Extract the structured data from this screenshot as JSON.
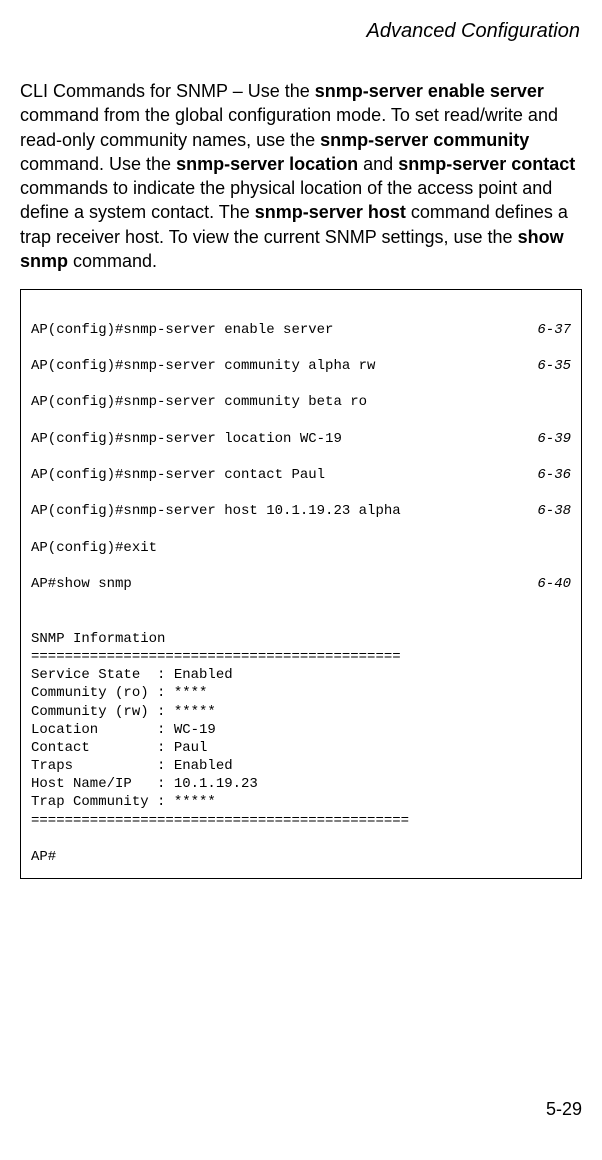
{
  "header": {
    "title": "Advanced Configuration"
  },
  "para": {
    "t1": "CLI Commands for SNMP – Use the ",
    "b1": "snmp-server enable server",
    "t2": " command from the global configuration mode. To set read/write and read-only community names, use the ",
    "b2": "snmp-server community",
    "t3": " command. Use the ",
    "b3": "snmp-server location",
    "t4": " and ",
    "b4": "snmp-server contact",
    "t5": " commands to indicate the physical location of the access point and define a system contact. The ",
    "b5": "snmp-server host",
    "t6": " command defines a trap receiver host. To view the current SNMP settings, use the ",
    "b6": "show snmp",
    "t7": " command."
  },
  "cli": {
    "lines": [
      {
        "cmd": "AP(config)#snmp-server enable server",
        "ref": "6-37"
      },
      {
        "cmd": "AP(config)#snmp-server community alpha rw",
        "ref": "6-35"
      },
      {
        "cmd": "AP(config)#snmp-server community beta ro",
        "ref": ""
      },
      {
        "cmd": "AP(config)#snmp-server location WC-19",
        "ref": "6-39"
      },
      {
        "cmd": "AP(config)#snmp-server contact Paul",
        "ref": "6-36"
      },
      {
        "cmd": "AP(config)#snmp-server host 10.1.19.23 alpha",
        "ref": "6-38"
      },
      {
        "cmd": "AP(config)#exit",
        "ref": ""
      },
      {
        "cmd": "AP#show snmp",
        "ref": "6-40"
      }
    ],
    "output": "\nSNMP Information\n============================================\nService State  : Enabled\nCommunity (ro) : ****\nCommunity (rw) : *****\nLocation       : WC-19\nContact        : Paul\nTraps          : Enabled\nHost Name/IP   : 10.1.19.23\nTrap Community : *****\n=============================================\n\nAP#"
  },
  "footer": {
    "page": "5-29"
  }
}
